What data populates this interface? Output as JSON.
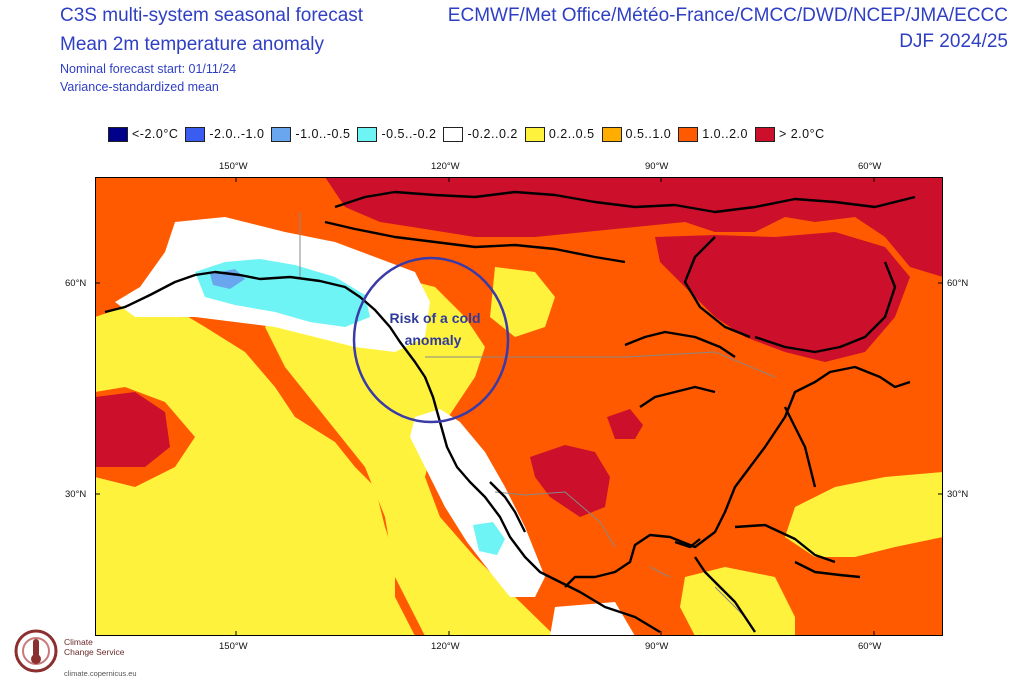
{
  "header": {
    "title_line1": "C3S multi-system seasonal forecast",
    "title_line2": "Mean 2m temperature anomaly",
    "subtitle_line1": "Nominal forecast start: 01/11/24",
    "subtitle_line2": "Variance-standardized mean",
    "centres": "ECMWF/Met Office/Météo-France/CMCC/DWD/NCEP/JMA/ECCC",
    "season": "DJF 2024/25"
  },
  "legend": [
    {
      "label": "<-2.0°C",
      "color": "#00008b"
    },
    {
      "label": "-2.0..-1.0",
      "color": "#3a5cf0"
    },
    {
      "label": "-1.0..-0.5",
      "color": "#6aa6ee"
    },
    {
      "label": "-0.5..-0.2",
      "color": "#6ff4f6"
    },
    {
      "label": "-0.2..0.2",
      "color": "#ffffff"
    },
    {
      "label": "0.2..0.5",
      "color": "#fff23d"
    },
    {
      "label": "0.5..1.0",
      "color": "#ffae00"
    },
    {
      "label": "1.0..2.0",
      "color": "#ff5a00"
    },
    {
      "label": "> 2.0°C",
      "color": "#cc0f2a"
    }
  ],
  "axes": {
    "lon_labels": [
      "150°W",
      "120°W",
      "90°W",
      "60°W"
    ],
    "lat_labels": [
      "60°N",
      "30°N"
    ]
  },
  "annotation": {
    "line1": "Risk of a cold",
    "line2": "anomaly"
  },
  "logo": {
    "line1": "Climate",
    "line2": "Change Service",
    "url": "climate.copernicus.eu"
  }
}
